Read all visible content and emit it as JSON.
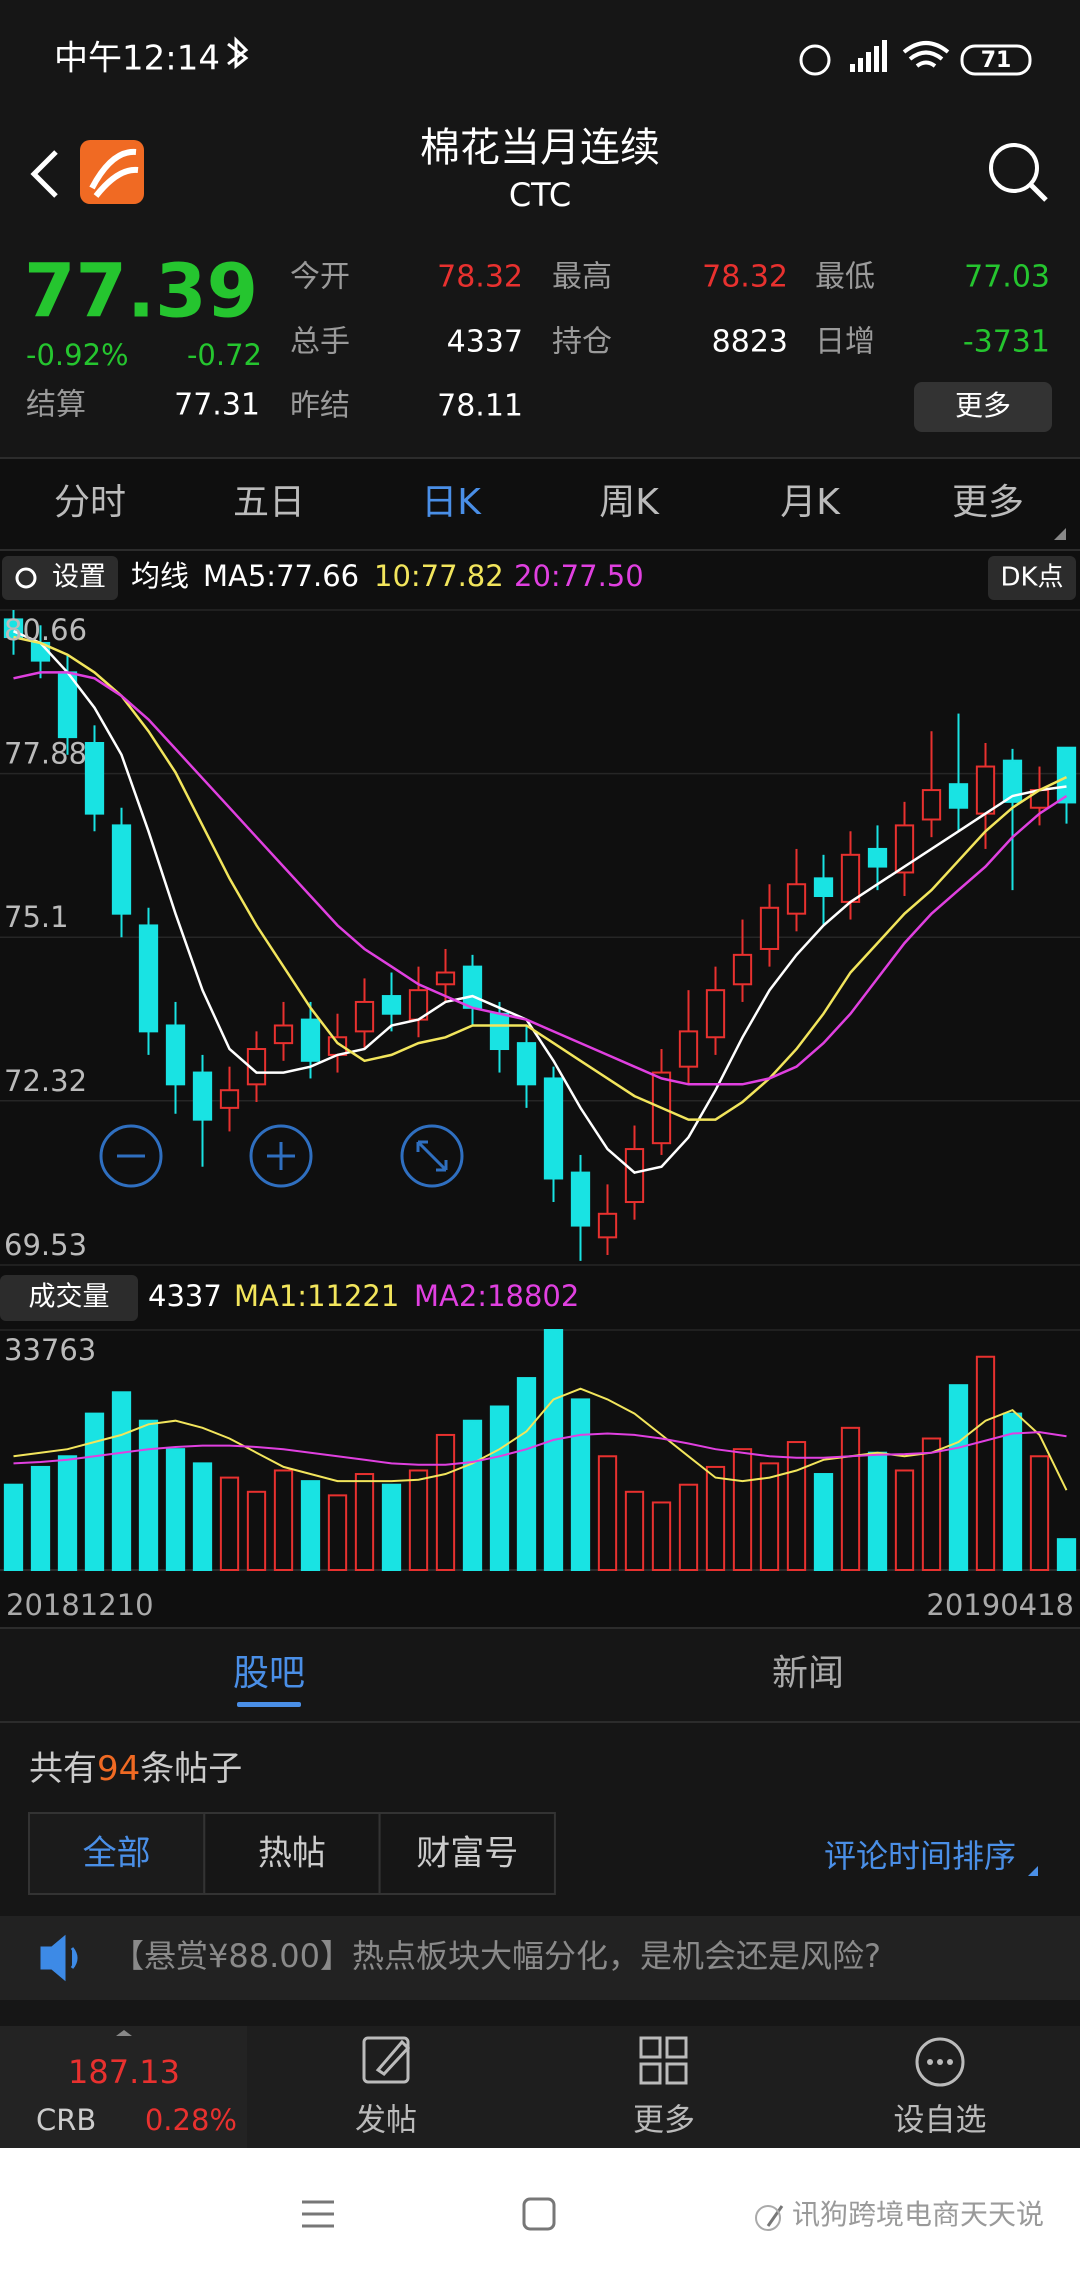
{
  "status_bar": {
    "time": "中午12:14",
    "battery": "71"
  },
  "header": {
    "title": "棉花当月连续",
    "code": "CTC"
  },
  "quote": {
    "price": "77.39",
    "change_pct": "-0.92%",
    "change": "-0.72",
    "settle_label": "结算",
    "settle": "77.31",
    "fields": [
      {
        "label": "今开",
        "value": "78.32",
        "color": "#e8312f"
      },
      {
        "label": "最高",
        "value": "78.32",
        "color": "#e8312f"
      },
      {
        "label": "最低",
        "value": "77.03",
        "color": "#25c52f"
      },
      {
        "label": "总手",
        "value": "4337",
        "color": "#ffffff"
      },
      {
        "label": "持仓",
        "value": "8823",
        "color": "#ffffff"
      },
      {
        "label": "日增",
        "value": "-3731",
        "color": "#25c52f"
      },
      {
        "label": "昨结",
        "value": "78.11",
        "color": "#ffffff"
      }
    ],
    "more": "更多"
  },
  "tabs": [
    "分时",
    "五日",
    "日K",
    "周K",
    "月K",
    "更多"
  ],
  "active_tab": 2,
  "ma_bar": {
    "settings": "设置",
    "label": "均线",
    "ma5": "MA5:77.66",
    "ma10": "10:77.82",
    "ma20": "20:77.50",
    "dk": "DK点"
  },
  "kline": {
    "ylim": [
      69.53,
      80.66
    ],
    "yticks": [
      80.66,
      77.88,
      75.1,
      72.32,
      69.53
    ],
    "up_color": "#e8312f",
    "down_color": "#19e3e3",
    "open": [
      80.5,
      80.1,
      79.6,
      78.4,
      77.0,
      75.3,
      73.6,
      72.8,
      72.2,
      72.6,
      73.3,
      73.7,
      73.1,
      73.5,
      74.1,
      73.7,
      74.3,
      74.6,
      73.8,
      73.3,
      72.7,
      71.1,
      70.0,
      70.6,
      71.6,
      72.9,
      73.4,
      74.3,
      74.9,
      75.5,
      76.1,
      75.7,
      76.6,
      76.2,
      77.1,
      77.7,
      77.2,
      78.1,
      77.3,
      78.32
    ],
    "close": [
      80.2,
      79.8,
      78.5,
      77.2,
      75.5,
      73.5,
      72.6,
      72.0,
      72.5,
      73.2,
      73.6,
      73.0,
      73.4,
      74.0,
      73.8,
      74.2,
      74.5,
      73.9,
      73.2,
      72.6,
      71.0,
      70.2,
      70.4,
      71.5,
      72.8,
      73.5,
      74.2,
      74.8,
      75.6,
      76.0,
      75.8,
      76.5,
      76.3,
      77.0,
      77.6,
      77.3,
      78.0,
      77.4,
      77.6,
      77.39
    ],
    "high": [
      80.66,
      80.4,
      79.9,
      78.7,
      77.3,
      75.6,
      74.0,
      73.1,
      72.9,
      73.5,
      74.0,
      74.0,
      73.8,
      74.4,
      74.5,
      74.6,
      74.9,
      74.8,
      74.0,
      73.6,
      72.9,
      71.4,
      70.9,
      71.9,
      73.2,
      74.2,
      74.6,
      75.4,
      76.0,
      76.6,
      76.5,
      76.9,
      77.0,
      77.4,
      78.6,
      78.9,
      78.4,
      78.3,
      78.0,
      78.32
    ],
    "low": [
      79.9,
      79.5,
      78.2,
      76.9,
      75.1,
      73.1,
      72.1,
      71.2,
      71.8,
      72.3,
      73.0,
      72.7,
      72.8,
      73.2,
      73.5,
      73.4,
      74.0,
      73.6,
      72.8,
      72.2,
      70.6,
      69.6,
      69.7,
      70.3,
      71.4,
      72.6,
      73.1,
      74.0,
      74.6,
      75.2,
      75.3,
      75.4,
      75.9,
      75.8,
      76.8,
      76.9,
      76.6,
      75.9,
      77.0,
      77.03
    ],
    "ma": [
      {
        "color": "#ffffff",
        "values": [
          80.3,
          80.1,
          79.6,
          79.0,
          78.2,
          76.9,
          75.5,
          74.2,
          73.2,
          72.8,
          72.8,
          72.9,
          73.1,
          73.2,
          73.6,
          73.7,
          74.0,
          74.1,
          73.9,
          73.7,
          73.0,
          72.2,
          71.5,
          71.1,
          71.2,
          71.7,
          72.5,
          73.4,
          74.2,
          74.8,
          75.3,
          75.7,
          76.0,
          76.3,
          76.6,
          76.9,
          77.2,
          77.5,
          77.6,
          77.66
        ]
      },
      {
        "color": "#f2e55c",
        "values": [
          80.2,
          80.1,
          79.9,
          79.6,
          79.2,
          78.6,
          77.9,
          77.0,
          76.1,
          75.3,
          74.6,
          73.9,
          73.3,
          73.0,
          73.1,
          73.3,
          73.4,
          73.6,
          73.6,
          73.6,
          73.3,
          73.0,
          72.7,
          72.4,
          72.2,
          72.0,
          72.0,
          72.3,
          72.7,
          73.2,
          73.8,
          74.5,
          75.0,
          75.5,
          75.9,
          76.4,
          76.9,
          77.3,
          77.6,
          77.82
        ]
      },
      {
        "color": "#e040e0",
        "values": [
          79.5,
          79.6,
          79.6,
          79.5,
          79.2,
          78.8,
          78.3,
          77.8,
          77.3,
          76.8,
          76.3,
          75.8,
          75.3,
          74.9,
          74.6,
          74.3,
          74.1,
          73.9,
          73.8,
          73.7,
          73.5,
          73.3,
          73.1,
          72.9,
          72.7,
          72.6,
          72.6,
          72.6,
          72.7,
          72.9,
          73.3,
          73.8,
          74.4,
          75.0,
          75.5,
          75.9,
          76.3,
          76.8,
          77.2,
          77.5
        ]
      }
    ]
  },
  "volume_bar": {
    "label": "成交量",
    "value": "4337",
    "ma1": "MA1:11221",
    "ma2": "MA2:18802"
  },
  "volume": {
    "ylim": [
      0,
      33763
    ],
    "yticks": [
      33763
    ],
    "values": [
      12000,
      14500,
      16000,
      22000,
      25000,
      21000,
      17000,
      15000,
      13000,
      11000,
      14000,
      12500,
      10500,
      13500,
      12000,
      14000,
      19000,
      21000,
      23000,
      27000,
      33763,
      24000,
      16000,
      11000,
      9500,
      12000,
      14500,
      17000,
      15000,
      18000,
      13500,
      20000,
      16500,
      14000,
      18500,
      26000,
      30000,
      22000,
      16000,
      4337
    ],
    "ma": [
      {
        "color": "#f2e55c",
        "values": [
          16000,
          16500,
          17000,
          18000,
          19000,
          20500,
          21000,
          20000,
          18500,
          16500,
          14500,
          13500,
          12500,
          12500,
          12500,
          12700,
          13500,
          15000,
          17000,
          19500,
          24000,
          25500,
          24000,
          22000,
          19000,
          16000,
          13000,
          12500,
          13000,
          14000,
          15500,
          16000,
          16500,
          16000,
          16500,
          18000,
          21000,
          22500,
          19000,
          11221
        ]
      },
      {
        "color": "#e040e0",
        "values": [
          15000,
          15200,
          15500,
          16000,
          16500,
          17000,
          17300,
          17500,
          17500,
          17300,
          17000,
          16500,
          16000,
          15500,
          15000,
          14800,
          14800,
          15200,
          16000,
          17000,
          18300,
          19000,
          19200,
          19000,
          18500,
          17800,
          17000,
          16500,
          16000,
          15800,
          15800,
          16000,
          16200,
          16300,
          16500,
          17200,
          18200,
          19200,
          19400,
          18802
        ]
      }
    ]
  },
  "dates": [
    "20181210",
    "20190418"
  ],
  "sub_tabs": [
    "股吧",
    "新闻"
  ],
  "posts": {
    "prefix": "共有",
    "count": "94",
    "suffix": "条帖子",
    "filters": [
      "全部",
      "热帖",
      "财富号"
    ],
    "sort": "评论时间排序",
    "notice": "【悬赏¥88.00】热点板块大幅分化，是机会还是风险?"
  },
  "bottom_bar": {
    "index_value": "187.13",
    "index_name": "CRB",
    "index_change": "0.28%",
    "actions": [
      "发帖",
      "更多",
      "设自选"
    ]
  },
  "watermark": "讯狗跨境电商天天说"
}
